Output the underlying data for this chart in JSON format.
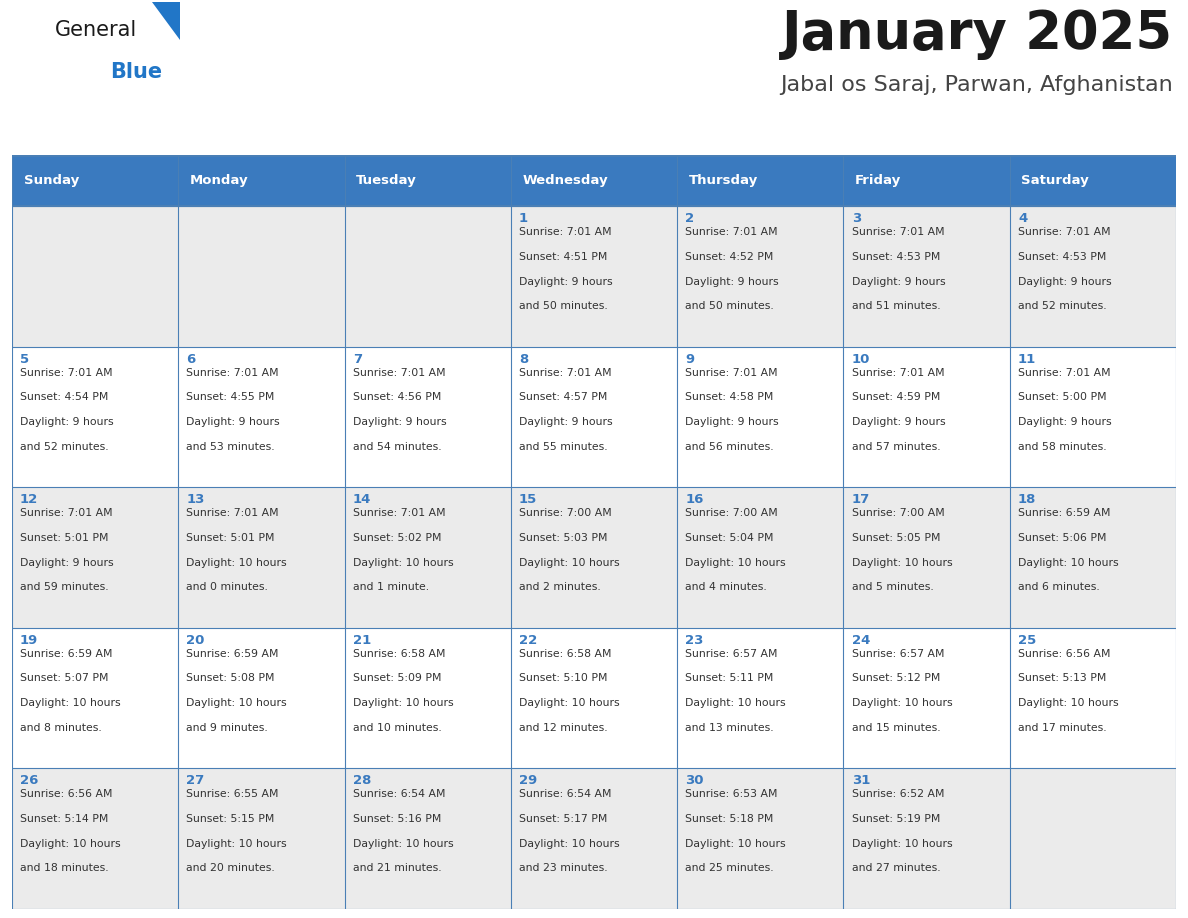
{
  "title": "January 2025",
  "subtitle": "Jabal os Saraj, Parwan, Afghanistan",
  "header_bg_color": "#3a7abf",
  "header_text_color": "#ffffff",
  "row_bg_colors": [
    "#ebebeb",
    "#ffffff",
    "#ebebeb",
    "#ffffff",
    "#ebebeb"
  ],
  "grid_line_color": "#4a7fb5",
  "day_number_color": "#3a7abf",
  "text_color": "#333333",
  "days_of_week": [
    "Sunday",
    "Monday",
    "Tuesday",
    "Wednesday",
    "Thursday",
    "Friday",
    "Saturday"
  ],
  "calendar_data": [
    [
      null,
      null,
      null,
      {
        "day": 1,
        "sunrise": "7:01 AM",
        "sunset": "4:51 PM",
        "daylight": "9 hours",
        "daylight2": "and 50 minutes."
      },
      {
        "day": 2,
        "sunrise": "7:01 AM",
        "sunset": "4:52 PM",
        "daylight": "9 hours",
        "daylight2": "and 50 minutes."
      },
      {
        "day": 3,
        "sunrise": "7:01 AM",
        "sunset": "4:53 PM",
        "daylight": "9 hours",
        "daylight2": "and 51 minutes."
      },
      {
        "day": 4,
        "sunrise": "7:01 AM",
        "sunset": "4:53 PM",
        "daylight": "9 hours",
        "daylight2": "and 52 minutes."
      }
    ],
    [
      {
        "day": 5,
        "sunrise": "7:01 AM",
        "sunset": "4:54 PM",
        "daylight": "9 hours",
        "daylight2": "and 52 minutes."
      },
      {
        "day": 6,
        "sunrise": "7:01 AM",
        "sunset": "4:55 PM",
        "daylight": "9 hours",
        "daylight2": "and 53 minutes."
      },
      {
        "day": 7,
        "sunrise": "7:01 AM",
        "sunset": "4:56 PM",
        "daylight": "9 hours",
        "daylight2": "and 54 minutes."
      },
      {
        "day": 8,
        "sunrise": "7:01 AM",
        "sunset": "4:57 PM",
        "daylight": "9 hours",
        "daylight2": "and 55 minutes."
      },
      {
        "day": 9,
        "sunrise": "7:01 AM",
        "sunset": "4:58 PM",
        "daylight": "9 hours",
        "daylight2": "and 56 minutes."
      },
      {
        "day": 10,
        "sunrise": "7:01 AM",
        "sunset": "4:59 PM",
        "daylight": "9 hours",
        "daylight2": "and 57 minutes."
      },
      {
        "day": 11,
        "sunrise": "7:01 AM",
        "sunset": "5:00 PM",
        "daylight": "9 hours",
        "daylight2": "and 58 minutes."
      }
    ],
    [
      {
        "day": 12,
        "sunrise": "7:01 AM",
        "sunset": "5:01 PM",
        "daylight": "9 hours",
        "daylight2": "and 59 minutes."
      },
      {
        "day": 13,
        "sunrise": "7:01 AM",
        "sunset": "5:01 PM",
        "daylight": "10 hours",
        "daylight2": "and 0 minutes."
      },
      {
        "day": 14,
        "sunrise": "7:01 AM",
        "sunset": "5:02 PM",
        "daylight": "10 hours",
        "daylight2": "and 1 minute."
      },
      {
        "day": 15,
        "sunrise": "7:00 AM",
        "sunset": "5:03 PM",
        "daylight": "10 hours",
        "daylight2": "and 2 minutes."
      },
      {
        "day": 16,
        "sunrise": "7:00 AM",
        "sunset": "5:04 PM",
        "daylight": "10 hours",
        "daylight2": "and 4 minutes."
      },
      {
        "day": 17,
        "sunrise": "7:00 AM",
        "sunset": "5:05 PM",
        "daylight": "10 hours",
        "daylight2": "and 5 minutes."
      },
      {
        "day": 18,
        "sunrise": "6:59 AM",
        "sunset": "5:06 PM",
        "daylight": "10 hours",
        "daylight2": "and 6 minutes."
      }
    ],
    [
      {
        "day": 19,
        "sunrise": "6:59 AM",
        "sunset": "5:07 PM",
        "daylight": "10 hours",
        "daylight2": "and 8 minutes."
      },
      {
        "day": 20,
        "sunrise": "6:59 AM",
        "sunset": "5:08 PM",
        "daylight": "10 hours",
        "daylight2": "and 9 minutes."
      },
      {
        "day": 21,
        "sunrise": "6:58 AM",
        "sunset": "5:09 PM",
        "daylight": "10 hours",
        "daylight2": "and 10 minutes."
      },
      {
        "day": 22,
        "sunrise": "6:58 AM",
        "sunset": "5:10 PM",
        "daylight": "10 hours",
        "daylight2": "and 12 minutes."
      },
      {
        "day": 23,
        "sunrise": "6:57 AM",
        "sunset": "5:11 PM",
        "daylight": "10 hours",
        "daylight2": "and 13 minutes."
      },
      {
        "day": 24,
        "sunrise": "6:57 AM",
        "sunset": "5:12 PM",
        "daylight": "10 hours",
        "daylight2": "and 15 minutes."
      },
      {
        "day": 25,
        "sunrise": "6:56 AM",
        "sunset": "5:13 PM",
        "daylight": "10 hours",
        "daylight2": "and 17 minutes."
      }
    ],
    [
      {
        "day": 26,
        "sunrise": "6:56 AM",
        "sunset": "5:14 PM",
        "daylight": "10 hours",
        "daylight2": "and 18 minutes."
      },
      {
        "day": 27,
        "sunrise": "6:55 AM",
        "sunset": "5:15 PM",
        "daylight": "10 hours",
        "daylight2": "and 20 minutes."
      },
      {
        "day": 28,
        "sunrise": "6:54 AM",
        "sunset": "5:16 PM",
        "daylight": "10 hours",
        "daylight2": "and 21 minutes."
      },
      {
        "day": 29,
        "sunrise": "6:54 AM",
        "sunset": "5:17 PM",
        "daylight": "10 hours",
        "daylight2": "and 23 minutes."
      },
      {
        "day": 30,
        "sunrise": "6:53 AM",
        "sunset": "5:18 PM",
        "daylight": "10 hours",
        "daylight2": "and 25 minutes."
      },
      {
        "day": 31,
        "sunrise": "6:52 AM",
        "sunset": "5:19 PM",
        "daylight": "10 hours",
        "daylight2": "and 27 minutes."
      },
      null
    ]
  ],
  "logo_color_general": "#1a1a1a",
  "logo_color_blue": "#2176c7",
  "logo_triangle_color": "#2176c7"
}
